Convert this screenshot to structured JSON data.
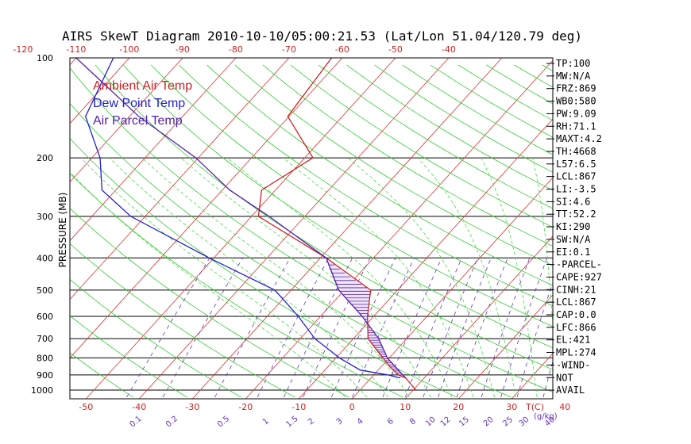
{
  "chart_data": {
    "type": "line",
    "title": "AIRS SkewT Diagram 2010-10-10/05:00:21.53 (Lat/Lon 51.04/120.79 deg)",
    "ylabel": "PRESSURE (MB)",
    "pressure_ticks": [
      100,
      200,
      300,
      400,
      500,
      600,
      700,
      800,
      900,
      1000
    ],
    "pressure_range": [
      100,
      1000
    ],
    "top_temp_ticks": [
      "-120",
      "-110",
      "-100",
      "-90",
      "-80",
      "-70",
      "-60",
      "-50",
      "-40"
    ],
    "bottom_temp_ticks": [
      "-50",
      "-40",
      "-30",
      "-20",
      "-10",
      "0",
      "10",
      "20",
      "30",
      "40"
    ],
    "bottom_unit_label": "T(C)",
    "mixing_ratio_ticks": [
      "0.1",
      "0.2",
      "0.5",
      "1",
      "1.5",
      "2",
      "3",
      "4",
      "6",
      "8",
      "10",
      "12",
      "15",
      "20",
      "25",
      "30",
      "40"
    ],
    "mixing_unit_label": "(g/kg)",
    "legend": [
      {
        "label": "Ambient Air Temp",
        "color": "#cc2222"
      },
      {
        "label": "Dew Point Temp",
        "color": "#2222cc"
      },
      {
        "label": "Air Parcel Temp",
        "color": "#5522aa"
      }
    ],
    "series": [
      {
        "name": "Ambient Air Temp",
        "color": "#cc2222",
        "points": [
          [
            1000,
            12
          ],
          [
            920,
            8
          ],
          [
            900,
            6
          ],
          [
            850,
            3
          ],
          [
            700,
            -6
          ],
          [
            600,
            -10
          ],
          [
            500,
            -14
          ],
          [
            400,
            -28
          ],
          [
            300,
            -48
          ],
          [
            250,
            -52
          ],
          [
            200,
            -48
          ],
          [
            150,
            -60
          ],
          [
            100,
            -62
          ]
        ]
      },
      {
        "name": "Dew Point Temp",
        "color": "#2222cc",
        "points": [
          [
            920,
            7
          ],
          [
            900,
            4
          ],
          [
            870,
            -2
          ],
          [
            800,
            -8
          ],
          [
            700,
            -16
          ],
          [
            600,
            -23
          ],
          [
            500,
            -32
          ],
          [
            400,
            -50
          ],
          [
            300,
            -72
          ],
          [
            250,
            -82
          ],
          [
            200,
            -88
          ],
          [
            150,
            -98
          ],
          [
            100,
            -103
          ]
        ]
      },
      {
        "name": "Air Parcel Temp",
        "color": "#5522aa",
        "points": [
          [
            920,
            8
          ],
          [
            867,
            5
          ],
          [
            800,
            1
          ],
          [
            700,
            -4
          ],
          [
            600,
            -11
          ],
          [
            500,
            -20
          ],
          [
            400,
            -28
          ],
          [
            300,
            -46
          ],
          [
            250,
            -58
          ],
          [
            200,
            -70
          ],
          [
            150,
            -88
          ],
          [
            100,
            -110
          ]
        ]
      }
    ]
  },
  "indices": [
    "TP:100",
    "MW:N/A",
    "FRZ:869",
    "WB0:580",
    "PW:9.09",
    "RH:71.1",
    "MAXT:4.2",
    "TH:4668",
    "L57:6.5",
    "LCL:867",
    "LI:-3.5",
    "SI:4.6",
    "TT:52.2",
    "KI:290",
    "SW:N/A",
    "EI:0.1",
    "-PARCEL-",
    "CAPE:927",
    "CINH:21",
    "LCL:867",
    "CAP:0.0",
    "LFC:866",
    "EL:421",
    "MPL:274",
    "-WIND-",
    "NOT",
    "AVAIL"
  ]
}
